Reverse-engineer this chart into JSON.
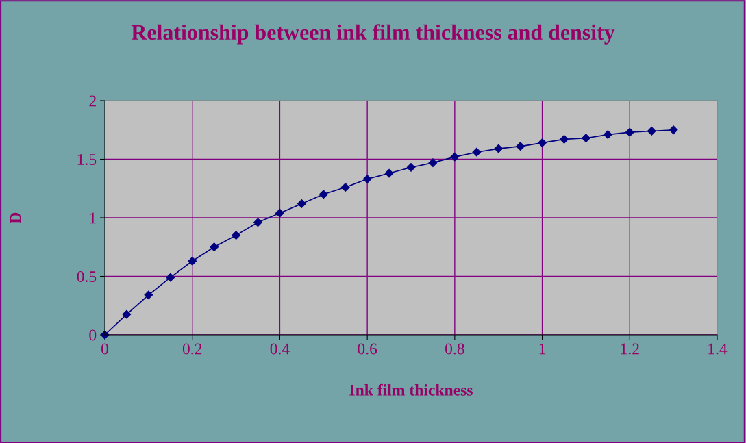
{
  "chart_data": {
    "type": "line",
    "title": "Relationship between ink film thickness and density",
    "xlabel": "Ink film thickness",
    "ylabel": "D",
    "x": [
      0,
      0.05,
      0.1,
      0.15,
      0.2,
      0.25,
      0.3,
      0.35,
      0.4,
      0.45,
      0.5,
      0.55,
      0.6,
      0.65,
      0.7,
      0.75,
      0.8,
      0.85,
      0.9,
      0.95,
      1.0,
      1.05,
      1.1,
      1.15,
      1.2,
      1.25,
      1.3
    ],
    "series": [
      {
        "color": "#000080",
        "values": [
          0,
          0.175,
          0.34,
          0.49,
          0.63,
          0.75,
          0.85,
          0.96,
          1.04,
          1.12,
          1.2,
          1.26,
          1.33,
          1.38,
          1.43,
          1.47,
          1.52,
          1.56,
          1.59,
          1.61,
          1.64,
          1.67,
          1.68,
          1.71,
          1.73,
          1.74,
          1.75
        ]
      }
    ],
    "xlim": [
      0,
      1.4
    ],
    "xticks": [
      0,
      0.2,
      0.4,
      0.6,
      0.8,
      1,
      1.2,
      1.4
    ],
    "ylim": [
      0,
      2
    ],
    "yticks": [
      0,
      0.5,
      1,
      1.5,
      2
    ],
    "grid": true,
    "marker": "diamond",
    "line_style": "solid"
  }
}
